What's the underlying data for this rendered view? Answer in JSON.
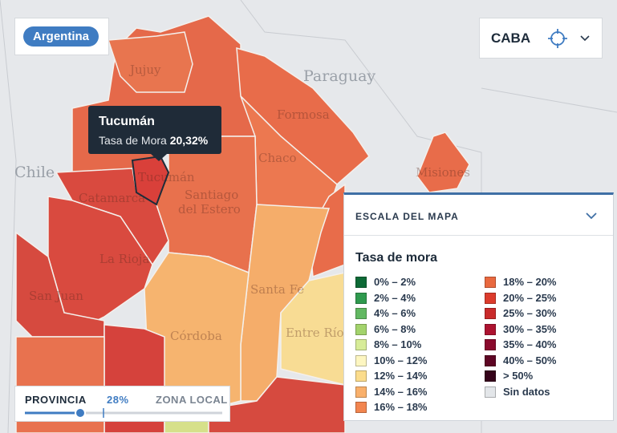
{
  "badge": "Argentina",
  "location_select": {
    "label": "CABA"
  },
  "tooltip": {
    "title": "Tucumán",
    "label": "Tasa de Mora",
    "value": "20,32%"
  },
  "map_labels": [
    "Paraguay",
    "Chile",
    "Jujuy",
    "Formosa",
    "Chaco",
    "Misiones",
    "Tucumán",
    "Catamarca",
    "Santiago",
    "del Estero",
    "La Rioja",
    "San Juan",
    "Santa Fe",
    "Córdoba",
    "Entre Ríos"
  ],
  "legend": {
    "header": "ESCALA DEL MAPA",
    "title": "Tasa de mora",
    "items": [
      {
        "label": "0% – 2%",
        "color": "#0d6a36"
      },
      {
        "label": "2% – 4%",
        "color": "#2f9a4e"
      },
      {
        "label": "4% – 6%",
        "color": "#62b862"
      },
      {
        "label": "6% – 8%",
        "color": "#a3d36c"
      },
      {
        "label": "8% – 10%",
        "color": "#d7ec98"
      },
      {
        "label": "10% – 12%",
        "color": "#fdf6c1"
      },
      {
        "label": "12% – 14%",
        "color": "#fbdc8c"
      },
      {
        "label": "14% – 16%",
        "color": "#f9b06b"
      },
      {
        "label": "16% – 18%",
        "color": "#f2854f"
      },
      {
        "label": "18% – 20%",
        "color": "#e9693f"
      },
      {
        "label": "20% – 25%",
        "color": "#dc3b2c"
      },
      {
        "label": "25% – 30%",
        "color": "#c92a2a"
      },
      {
        "label": "30% – 35%",
        "color": "#ad1330"
      },
      {
        "label": "35% – 40%",
        "color": "#8a0a2c"
      },
      {
        "label": "40% – 50%",
        "color": "#5e0624"
      },
      {
        "label": "> 50%",
        "color": "#35031a"
      },
      {
        "label": "Sin datos",
        "color": "#e3e6e9"
      }
    ]
  },
  "slider": {
    "left": "PROVINCIA",
    "value": "28%",
    "right": "ZONA LOCAL"
  }
}
